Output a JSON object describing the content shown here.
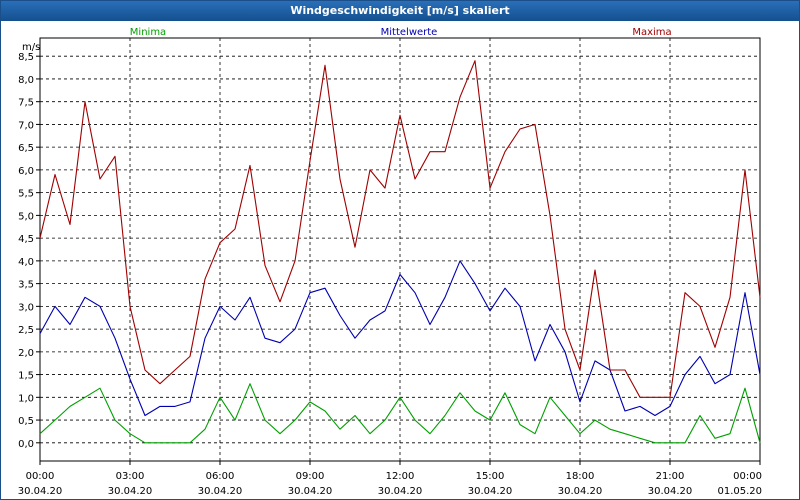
{
  "window": {
    "title": "Windgeschwindigkeit [m/s] skaliert"
  },
  "chart_data": {
    "type": "line",
    "title": "Windgeschwindigkeit [m/s] skaliert",
    "ylabel": "m/s",
    "xlabel": "",
    "ylim": [
      -0.4,
      8.9
    ],
    "xlim": [
      0,
      24
    ],
    "grid": true,
    "legend_position": "top",
    "y_ticks": [
      "0,0",
      "0,5",
      "1,0",
      "1,5",
      "2,0",
      "2,5",
      "3,0",
      "3,5",
      "4,0",
      "4,5",
      "5,0",
      "5,5",
      "6,0",
      "6,5",
      "7,0",
      "7,5",
      "8,0",
      "8,5"
    ],
    "y_tick_values": [
      0,
      0.5,
      1,
      1.5,
      2,
      2.5,
      3,
      3.5,
      4,
      4.5,
      5,
      5.5,
      6,
      6.5,
      7,
      7.5,
      8,
      8.5
    ],
    "x_ticks": [
      {
        "time": "00:00",
        "date": "30.04.20"
      },
      {
        "time": "03:00",
        "date": "30.04.20"
      },
      {
        "time": "06:00",
        "date": "30.04.20"
      },
      {
        "time": "09:00",
        "date": "30.04.20"
      },
      {
        "time": "12:00",
        "date": "30.04.20"
      },
      {
        "time": "15:00",
        "date": "30.04.20"
      },
      {
        "time": "18:00",
        "date": "30.04.20"
      },
      {
        "time": "21:00",
        "date": "30.04.20"
      },
      {
        "time": "00:00",
        "date": "01.05.20"
      }
    ],
    "x_tick_hours": [
      0,
      3,
      6,
      9,
      12,
      15,
      18,
      21,
      24
    ],
    "x_hours": [
      0,
      0.5,
      1,
      1.5,
      2,
      2.5,
      3,
      3.5,
      4,
      4.5,
      5,
      5.5,
      6,
      6.5,
      7,
      7.5,
      8,
      8.5,
      9,
      9.5,
      10,
      10.5,
      11,
      11.5,
      12,
      12.5,
      13,
      13.5,
      14,
      14.5,
      15,
      15.5,
      16,
      16.5,
      17,
      17.5,
      18,
      18.5,
      19,
      19.5,
      20,
      20.5,
      21,
      21.5,
      22,
      22.5,
      23,
      23.5,
      24
    ],
    "series": [
      {
        "name": "Minima",
        "color": "#00a000",
        "values": [
          0.2,
          0.5,
          0.8,
          1.0,
          1.2,
          0.5,
          0.2,
          0.0,
          0.0,
          0.0,
          0.0,
          0.3,
          1.0,
          0.5,
          1.3,
          0.5,
          0.2,
          0.5,
          0.9,
          0.7,
          0.3,
          0.6,
          0.2,
          0.5,
          1.0,
          0.5,
          0.2,
          0.6,
          1.1,
          0.7,
          0.5,
          1.1,
          0.4,
          0.2,
          1.0,
          0.6,
          0.2,
          0.5,
          0.3,
          0.2,
          0.1,
          0.0,
          0.0,
          0.0,
          0.6,
          0.1,
          0.2,
          1.2,
          0.0
        ]
      },
      {
        "name": "Mittelwerte",
        "color": "#0000b0",
        "values": [
          2.4,
          3.0,
          2.6,
          3.2,
          3.0,
          2.3,
          1.4,
          0.6,
          0.8,
          0.8,
          0.9,
          2.3,
          3.0,
          2.7,
          3.2,
          2.3,
          2.2,
          2.5,
          3.3,
          3.4,
          2.8,
          2.3,
          2.7,
          2.9,
          3.7,
          3.3,
          2.6,
          3.2,
          4.0,
          3.5,
          2.9,
          3.4,
          3.0,
          1.8,
          2.6,
          2.0,
          0.9,
          1.8,
          1.6,
          0.7,
          0.8,
          0.6,
          0.8,
          1.5,
          1.9,
          1.3,
          1.5,
          3.3,
          1.5
        ]
      },
      {
        "name": "Maxima",
        "color": "#a00000",
        "values": [
          4.5,
          5.9,
          4.8,
          7.5,
          5.8,
          6.3,
          3.0,
          1.6,
          1.3,
          1.6,
          1.9,
          3.6,
          4.4,
          4.7,
          6.1,
          3.9,
          3.1,
          4.0,
          6.2,
          8.3,
          5.8,
          4.3,
          6.0,
          5.6,
          7.2,
          5.8,
          6.4,
          6.4,
          7.6,
          8.4,
          5.6,
          6.4,
          6.9,
          7.0,
          5.0,
          2.5,
          1.6,
          3.8,
          1.6,
          1.6,
          1.0,
          1.0,
          1.0,
          3.3,
          3.0,
          2.1,
          3.2,
          6.0,
          3.2
        ]
      }
    ]
  }
}
